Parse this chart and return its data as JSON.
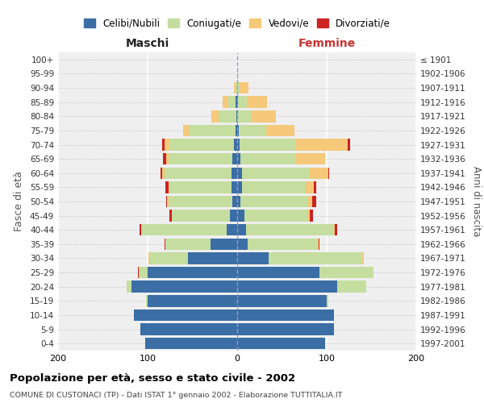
{
  "age_groups": [
    "0-4",
    "5-9",
    "10-14",
    "15-19",
    "20-24",
    "25-29",
    "30-34",
    "35-39",
    "40-44",
    "45-49",
    "50-54",
    "55-59",
    "60-64",
    "65-69",
    "70-74",
    "75-79",
    "80-84",
    "85-89",
    "90-94",
    "95-99",
    "100+"
  ],
  "birth_years": [
    "1997-2001",
    "1992-1996",
    "1987-1991",
    "1982-1986",
    "1977-1981",
    "1972-1976",
    "1967-1971",
    "1962-1966",
    "1957-1961",
    "1952-1956",
    "1947-1951",
    "1942-1946",
    "1937-1941",
    "1932-1936",
    "1927-1931",
    "1922-1926",
    "1917-1921",
    "1912-1916",
    "1907-1911",
    "1902-1906",
    "≤ 1901"
  ],
  "males": {
    "celibe": [
      103,
      108,
      115,
      100,
      118,
      100,
      55,
      30,
      12,
      8,
      5,
      6,
      6,
      5,
      4,
      2,
      1,
      2,
      0,
      0,
      0
    ],
    "coniugato": [
      0,
      0,
      0,
      2,
      5,
      10,
      42,
      50,
      95,
      65,
      72,
      70,
      75,
      72,
      72,
      52,
      20,
      8,
      2,
      0,
      0
    ],
    "vedovo": [
      0,
      0,
      0,
      0,
      0,
      0,
      2,
      0,
      0,
      0,
      1,
      1,
      3,
      2,
      5,
      6,
      8,
      6,
      2,
      0,
      0
    ],
    "divorziato": [
      0,
      0,
      0,
      0,
      0,
      1,
      0,
      1,
      2,
      3,
      1,
      3,
      2,
      4,
      3,
      0,
      0,
      0,
      0,
      0,
      0
    ]
  },
  "females": {
    "nubile": [
      98,
      108,
      108,
      100,
      112,
      92,
      35,
      12,
      10,
      8,
      4,
      5,
      5,
      4,
      3,
      2,
      0,
      1,
      0,
      0,
      0
    ],
    "coniugata": [
      0,
      0,
      0,
      2,
      32,
      60,
      105,
      78,
      98,
      70,
      75,
      72,
      75,
      62,
      62,
      30,
      15,
      10,
      3,
      0,
      0
    ],
    "vedova": [
      0,
      0,
      0,
      0,
      0,
      0,
      1,
      1,
      1,
      3,
      5,
      9,
      22,
      32,
      58,
      32,
      28,
      22,
      10,
      1,
      0
    ],
    "divorziata": [
      0,
      0,
      0,
      0,
      0,
      0,
      0,
      1,
      3,
      4,
      4,
      2,
      1,
      0,
      3,
      0,
      0,
      0,
      0,
      0,
      0
    ]
  },
  "colors": {
    "celibe": "#3a6ea5",
    "coniugato": "#c5dea0",
    "vedovo": "#f5c87a",
    "divorziato": "#cc2222"
  },
  "legend_labels": [
    "Celibi/Nubili",
    "Coniugati/e",
    "Vedovi/e",
    "Divorziati/e"
  ],
  "title": "Popolazione per età, sesso e stato civile - 2002",
  "subtitle": "COMUNE DI CUSTONACI (TP) - Dati ISTAT 1° gennaio 2002 - Elaborazione TUTTITALIA.IT",
  "label_maschi": "Maschi",
  "label_femmine": "Femmine",
  "ylabel_left": "Fasce di età",
  "ylabel_right": "Anni di nascita",
  "xlim": 200,
  "bg_color": "#efefef",
  "bar_height": 0.82
}
